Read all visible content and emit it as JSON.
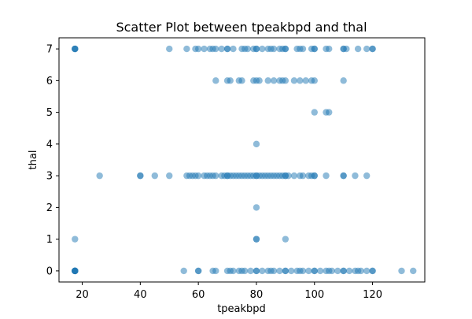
{
  "chart_data": {
    "type": "scatter",
    "title": "Scatter Plot between tpeakbpd and thal",
    "xlabel": "tpeakbpd",
    "ylabel": "thal",
    "xlim": [
      12,
      138
    ],
    "ylim": [
      -0.35,
      7.35
    ],
    "xticks": [
      20,
      40,
      60,
      80,
      100,
      120
    ],
    "yticks": [
      0,
      1,
      2,
      3,
      4,
      5,
      6,
      7
    ],
    "grid": false,
    "point_color": "#1f77b4",
    "point_alpha": 0.5,
    "points": [
      [
        17.5,
        0
      ],
      [
        17.5,
        0
      ],
      [
        17.5,
        0
      ],
      [
        17.5,
        0
      ],
      [
        17.5,
        0
      ],
      [
        17.5,
        0
      ],
      [
        17.5,
        0
      ],
      [
        17.5,
        0
      ],
      [
        17.5,
        1
      ],
      [
        17.5,
        7
      ],
      [
        17.5,
        7
      ],
      [
        17.5,
        7
      ],
      [
        17.5,
        7
      ],
      [
        26,
        3
      ],
      [
        40,
        3
      ],
      [
        40,
        3
      ],
      [
        45,
        3
      ],
      [
        50,
        3
      ],
      [
        56,
        3
      ],
      [
        57,
        3
      ],
      [
        58,
        3
      ],
      [
        59,
        3
      ],
      [
        60,
        3
      ],
      [
        62,
        3
      ],
      [
        63,
        3
      ],
      [
        64,
        3
      ],
      [
        65,
        3
      ],
      [
        66,
        3
      ],
      [
        68,
        3
      ],
      [
        69,
        3
      ],
      [
        70,
        3
      ],
      [
        70,
        3
      ],
      [
        71,
        3
      ],
      [
        72,
        3
      ],
      [
        73,
        3
      ],
      [
        74,
        3
      ],
      [
        75,
        3
      ],
      [
        76,
        3
      ],
      [
        77,
        3
      ],
      [
        78,
        3
      ],
      [
        79,
        3
      ],
      [
        80,
        3
      ],
      [
        80,
        3
      ],
      [
        81,
        3
      ],
      [
        82,
        3
      ],
      [
        83,
        3
      ],
      [
        84,
        3
      ],
      [
        85,
        3
      ],
      [
        86,
        3
      ],
      [
        87,
        3
      ],
      [
        88,
        3
      ],
      [
        89,
        3
      ],
      [
        90,
        3
      ],
      [
        90,
        3
      ],
      [
        91,
        3
      ],
      [
        93,
        3
      ],
      [
        95,
        3
      ],
      [
        96,
        3
      ],
      [
        98,
        3
      ],
      [
        99,
        3
      ],
      [
        100,
        3
      ],
      [
        100,
        3
      ],
      [
        104,
        3
      ],
      [
        110,
        3
      ],
      [
        110,
        3
      ],
      [
        114,
        3
      ],
      [
        118,
        3
      ],
      [
        80,
        1
      ],
      [
        80,
        1
      ],
      [
        90,
        1
      ],
      [
        80,
        2
      ],
      [
        80,
        4
      ],
      [
        100,
        5
      ],
      [
        104,
        5
      ],
      [
        105,
        5
      ],
      [
        66,
        6
      ],
      [
        70,
        6
      ],
      [
        71,
        6
      ],
      [
        74,
        6
      ],
      [
        75,
        6
      ],
      [
        79,
        6
      ],
      [
        80,
        6
      ],
      [
        81,
        6
      ],
      [
        84,
        6
      ],
      [
        86,
        6
      ],
      [
        88,
        6
      ],
      [
        89,
        6
      ],
      [
        90,
        6
      ],
      [
        93,
        6
      ],
      [
        95,
        6
      ],
      [
        97,
        6
      ],
      [
        99,
        6
      ],
      [
        100,
        6
      ],
      [
        110,
        6
      ],
      [
        50,
        7
      ],
      [
        56,
        7
      ],
      [
        59,
        7
      ],
      [
        60,
        7
      ],
      [
        62,
        7
      ],
      [
        64,
        7
      ],
      [
        65,
        7
      ],
      [
        66,
        7
      ],
      [
        68,
        7
      ],
      [
        70,
        7
      ],
      [
        70,
        7
      ],
      [
        72,
        7
      ],
      [
        75,
        7
      ],
      [
        76,
        7
      ],
      [
        77,
        7
      ],
      [
        79,
        7
      ],
      [
        80,
        7
      ],
      [
        80,
        7
      ],
      [
        82,
        7
      ],
      [
        84,
        7
      ],
      [
        85,
        7
      ],
      [
        86,
        7
      ],
      [
        88,
        7
      ],
      [
        89,
        7
      ],
      [
        90,
        7
      ],
      [
        90,
        7
      ],
      [
        94,
        7
      ],
      [
        95,
        7
      ],
      [
        96,
        7
      ],
      [
        99,
        7
      ],
      [
        100,
        7
      ],
      [
        100,
        7
      ],
      [
        104,
        7
      ],
      [
        105,
        7
      ],
      [
        110,
        7
      ],
      [
        110,
        7
      ],
      [
        111,
        7
      ],
      [
        115,
        7
      ],
      [
        118,
        7
      ],
      [
        120,
        7
      ],
      [
        120,
        7
      ],
      [
        55,
        0
      ],
      [
        60,
        0
      ],
      [
        60,
        0
      ],
      [
        65,
        0
      ],
      [
        66,
        0
      ],
      [
        70,
        0
      ],
      [
        71,
        0
      ],
      [
        72,
        0
      ],
      [
        74,
        0
      ],
      [
        75,
        0
      ],
      [
        76,
        0
      ],
      [
        78,
        0
      ],
      [
        80,
        0
      ],
      [
        80,
        0
      ],
      [
        82,
        0
      ],
      [
        84,
        0
      ],
      [
        85,
        0
      ],
      [
        86,
        0
      ],
      [
        88,
        0
      ],
      [
        90,
        0
      ],
      [
        90,
        0
      ],
      [
        92,
        0
      ],
      [
        94,
        0
      ],
      [
        95,
        0
      ],
      [
        96,
        0
      ],
      [
        98,
        0
      ],
      [
        100,
        0
      ],
      [
        100,
        0
      ],
      [
        102,
        0
      ],
      [
        104,
        0
      ],
      [
        105,
        0
      ],
      [
        106,
        0
      ],
      [
        108,
        0
      ],
      [
        110,
        0
      ],
      [
        110,
        0
      ],
      [
        112,
        0
      ],
      [
        114,
        0
      ],
      [
        115,
        0
      ],
      [
        116,
        0
      ],
      [
        118,
        0
      ],
      [
        120,
        0
      ],
      [
        120,
        0
      ],
      [
        130,
        0
      ],
      [
        134,
        0
      ]
    ]
  }
}
